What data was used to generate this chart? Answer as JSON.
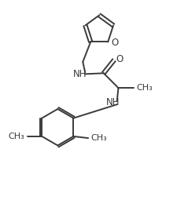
{
  "background": "#ffffff",
  "line_color": "#3a3a3a",
  "line_width": 1.4,
  "font_size": 8.5,
  "figsize": [
    2.26,
    2.78
  ],
  "dpi": 100,
  "xlim": [
    0,
    10
  ],
  "ylim": [
    0,
    12.3
  ]
}
